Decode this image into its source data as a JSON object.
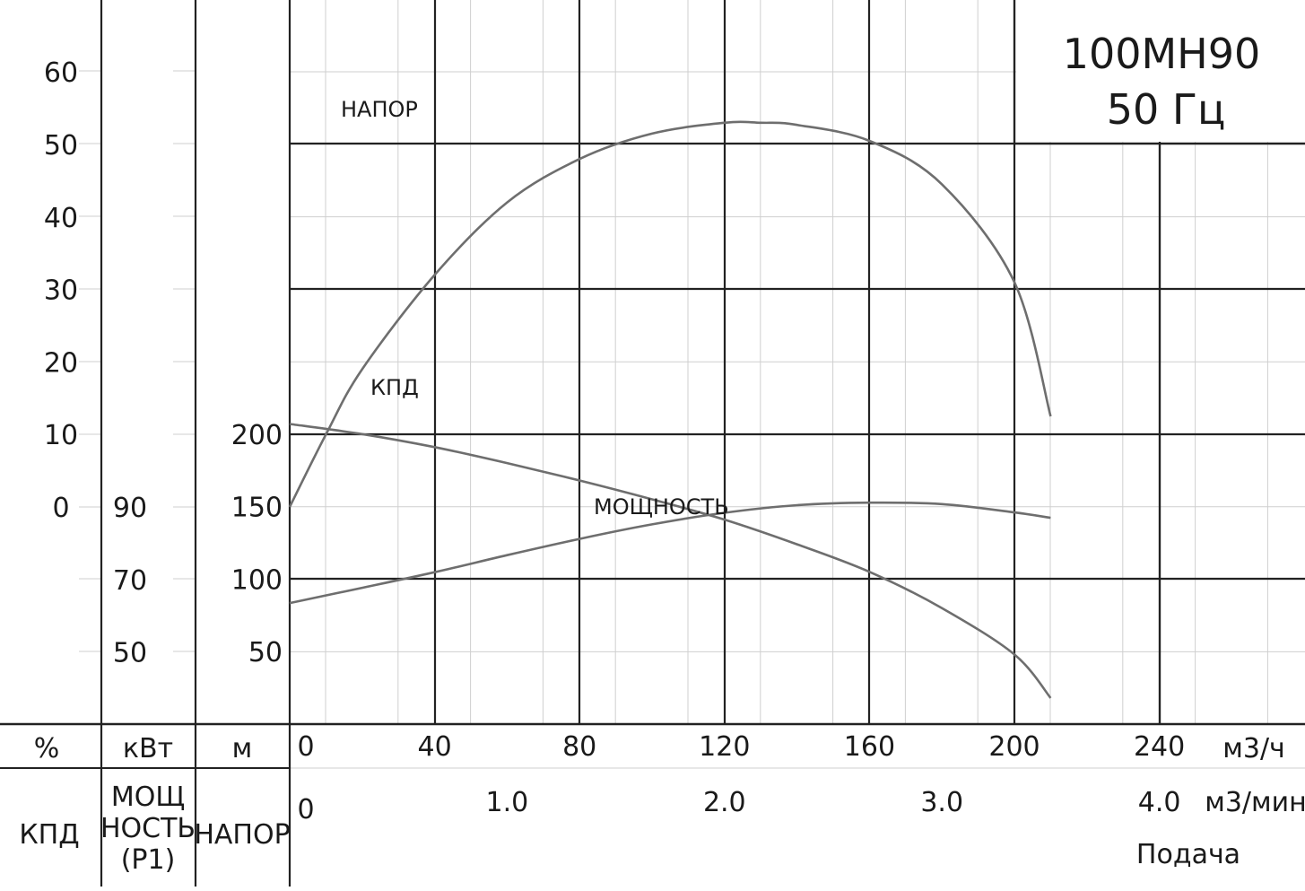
{
  "chart_data": {
    "type": "line",
    "title": "100MH90",
    "subtitle": "50 Гц",
    "x_axis": {
      "unit_label": "м3/ч",
      "range": [
        0,
        280
      ],
      "tick_values": [
        0,
        40,
        80,
        120,
        160,
        200,
        240
      ],
      "tick_labels": [
        "0",
        "40",
        "80",
        "120",
        "160",
        "200",
        "240"
      ]
    },
    "x2_axis": {
      "unit_label": "м3/мин",
      "tick_values": [
        0,
        1.0,
        2.0,
        3.0,
        4.0
      ],
      "tick_labels": [
        "0",
        "1.0",
        "2.0",
        "3.0",
        "4.0"
      ],
      "caption": "Подача"
    },
    "efficiency_axis": {
      "unit": "%",
      "name": "КПД",
      "range": [
        0,
        60
      ],
      "tick_values": [
        0,
        10,
        20,
        30,
        40,
        50,
        60
      ],
      "tick_labels": [
        "0",
        "10",
        "20",
        "30",
        "40",
        "50",
        "60"
      ]
    },
    "power_axis": {
      "unit": "кВт",
      "name_lines": [
        "МОЩ",
        "НОСТЬ",
        "(P1)"
      ],
      "tick_values": [
        50,
        70,
        90
      ],
      "tick_labels": [
        "50",
        "70",
        "90"
      ]
    },
    "head_axis": {
      "unit": "м",
      "name": "НАПОР",
      "range": [
        0,
        250
      ],
      "tick_values": [
        50,
        100,
        150,
        200
      ],
      "tick_labels": [
        "50",
        "100",
        "150",
        "200"
      ]
    },
    "series": [
      {
        "name": "НАПОР",
        "axis": "head",
        "x": [
          0,
          20,
          40,
          60,
          80,
          100,
          120,
          140,
          160,
          180,
          200,
          210
        ],
        "y": [
          207,
          200,
          191,
          180,
          168,
          155,
          141,
          124,
          105,
          80,
          48,
          18
        ]
      },
      {
        "name": "КПД",
        "axis": "efficiency",
        "x": [
          0,
          10,
          20,
          40,
          60,
          80,
          100,
          120,
          130,
          140,
          160,
          180,
          200,
          210
        ],
        "y": [
          0,
          10,
          19,
          32,
          42,
          48,
          51.5,
          53,
          53,
          52.7,
          50.5,
          44.5,
          31,
          12.5
        ]
      },
      {
        "name": "МОЩНОСТЬ",
        "axis": "power",
        "x": [
          0,
          20,
          40,
          60,
          80,
          100,
          120,
          140,
          160,
          180,
          200,
          210
        ],
        "y": [
          63.5,
          67.7,
          72,
          76.7,
          81.2,
          85.2,
          88.4,
          90.5,
          91.2,
          90.8,
          88.5,
          87
        ]
      }
    ],
    "grid": true
  }
}
